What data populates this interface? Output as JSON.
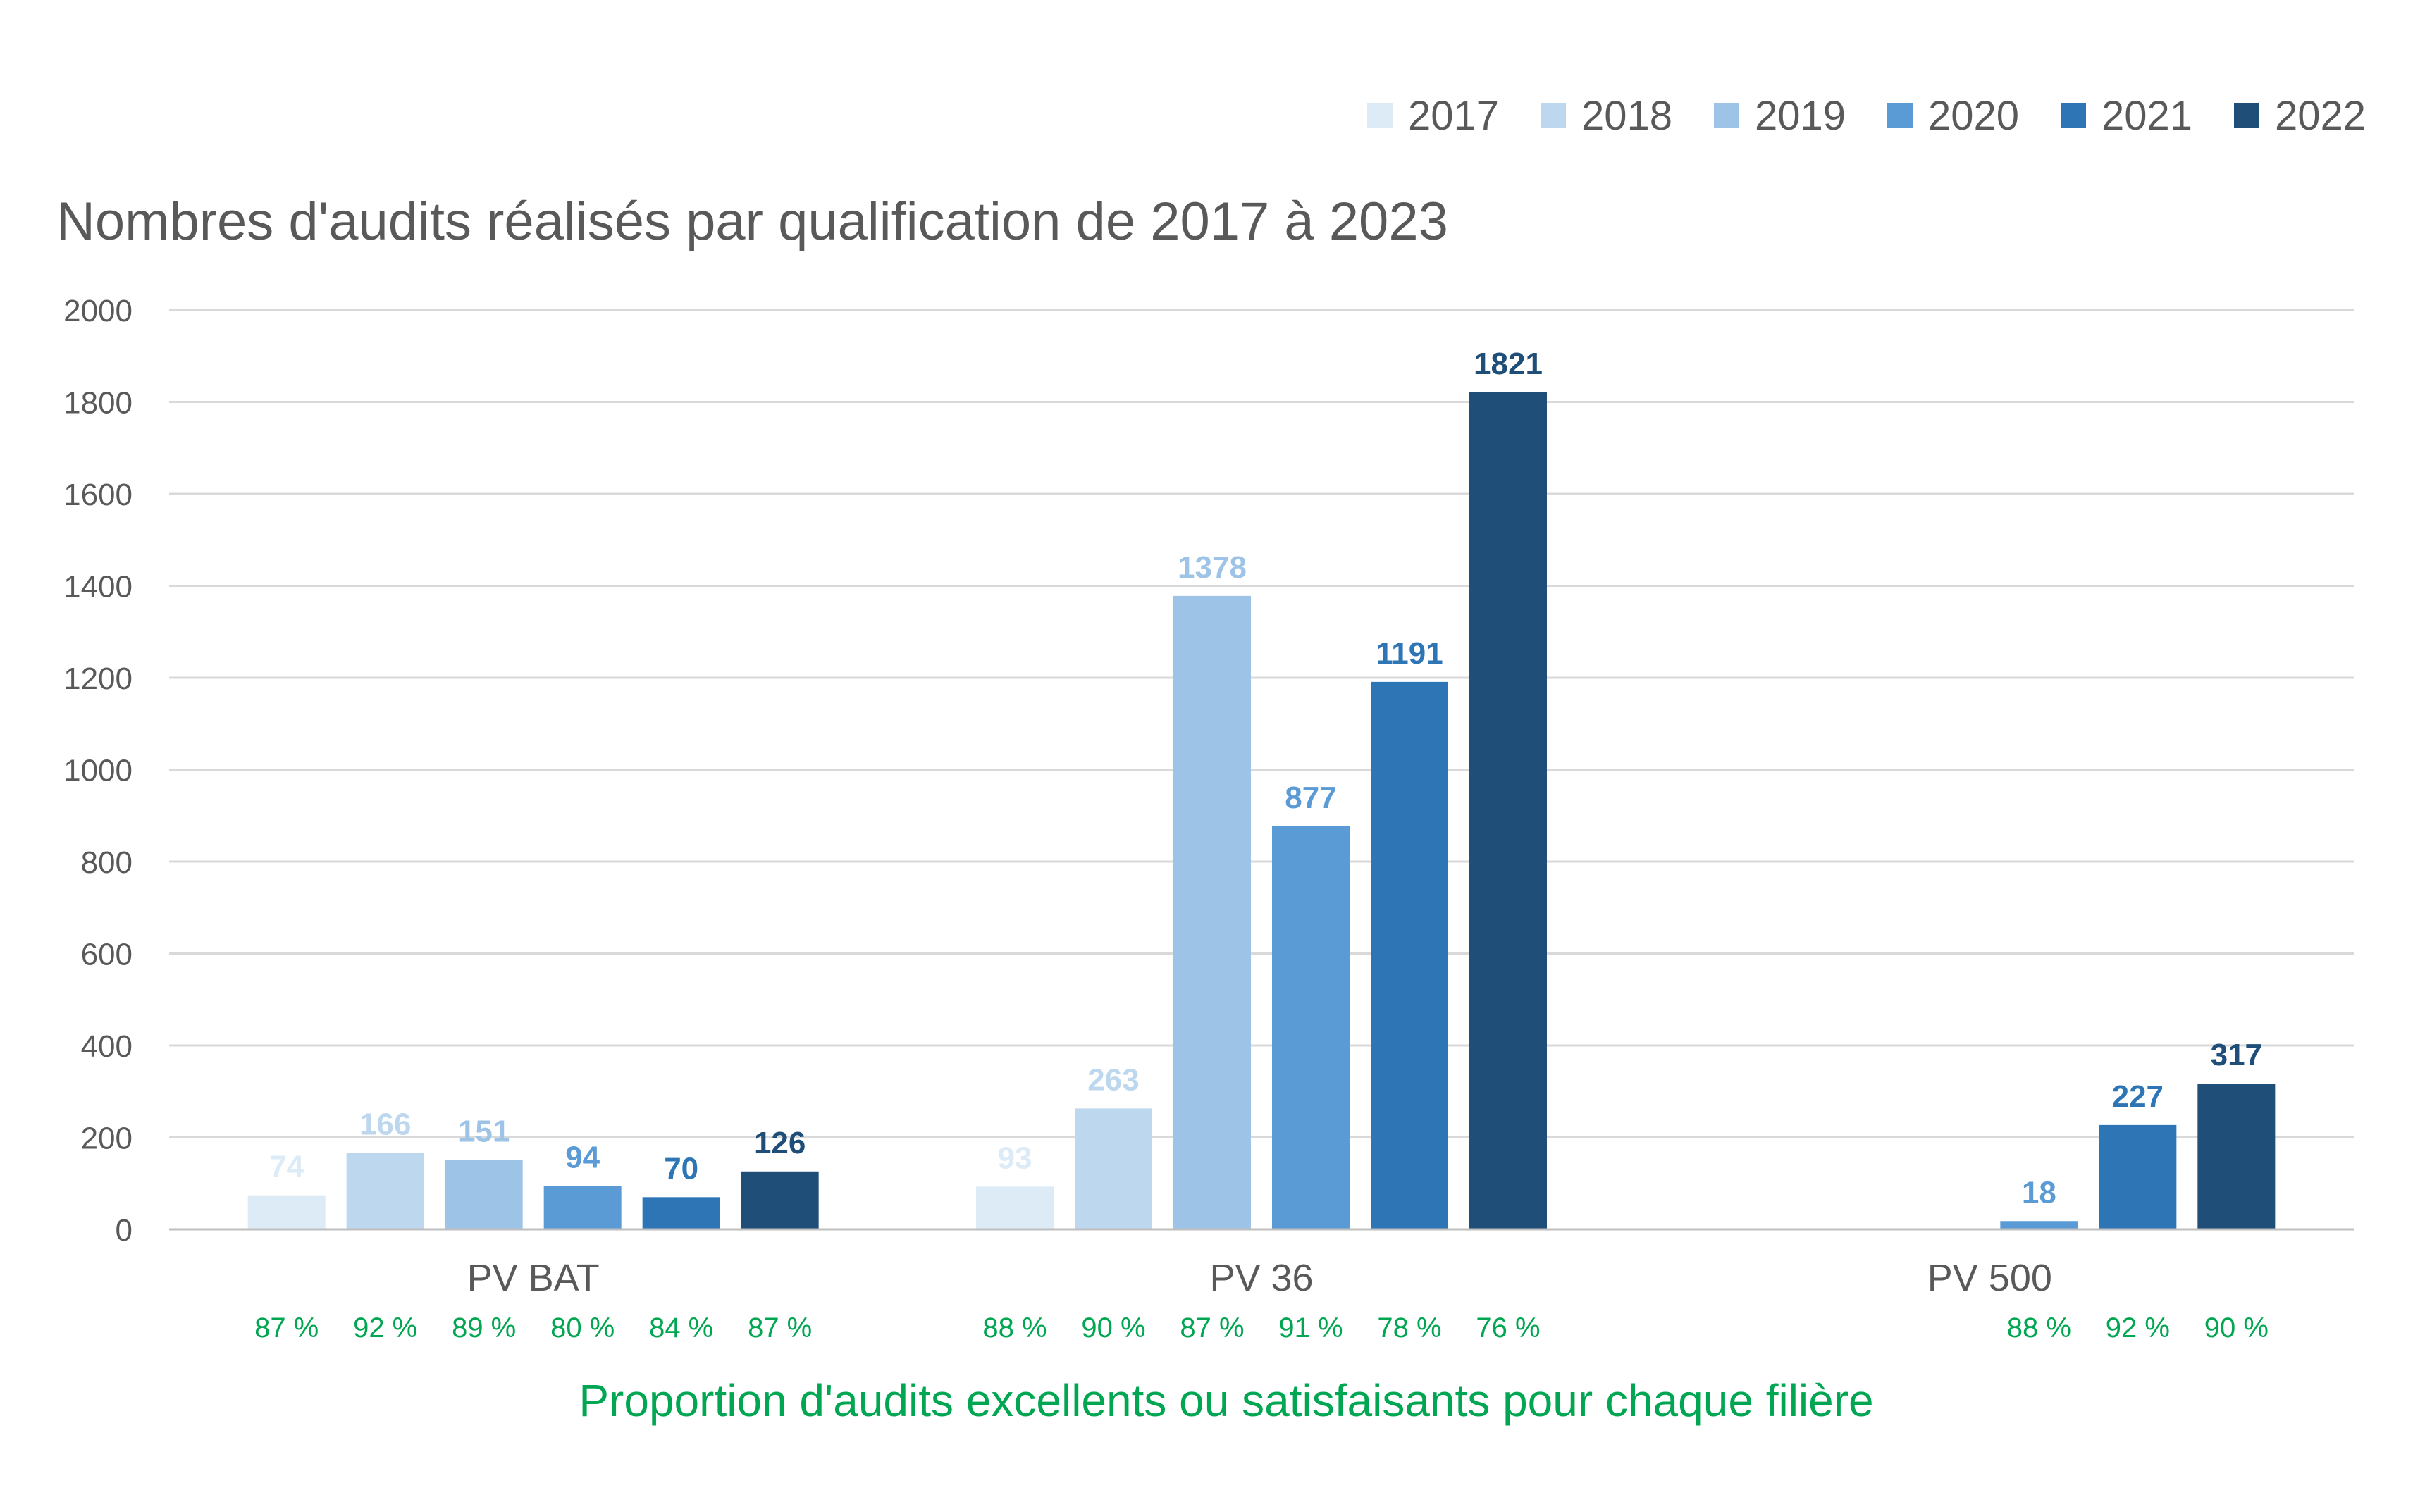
{
  "chart_data": {
    "type": "bar",
    "title": "Nombres d'audits réalisés par qualification de 2017 à 2023",
    "categories": [
      "PV BAT",
      "PV 36",
      "PV 500"
    ],
    "series": [
      {
        "name": "2017",
        "color": "#ddebf7",
        "values": [
          74,
          93,
          null
        ]
      },
      {
        "name": "2018",
        "color": "#bdd7ee",
        "values": [
          166,
          263,
          null
        ]
      },
      {
        "name": "2019",
        "color": "#9dc3e6",
        "values": [
          151,
          1378,
          null
        ]
      },
      {
        "name": "2020",
        "color": "#5b9bd5",
        "values": [
          94,
          877,
          18
        ]
      },
      {
        "name": "2021",
        "color": "#2e75b6",
        "values": [
          70,
          1191,
          227
        ]
      },
      {
        "name": "2022",
        "color": "#1f4e79",
        "values": [
          126,
          1821,
          317
        ]
      }
    ],
    "label_colors": [
      "#ddebf7",
      "#bdd7ee",
      "#9dc3e6",
      "#5b9bd5",
      "#2e75b6",
      "#1f4e79"
    ],
    "ylim": [
      0,
      2000
    ],
    "yticks": [
      0,
      200,
      400,
      600,
      800,
      1000,
      1200,
      1400,
      1600,
      1800,
      2000
    ],
    "grid": true,
    "legend_position": "top-right",
    "proportions": [
      [
        "87 %",
        "92 %",
        "89 %",
        "80 %",
        "84 %",
        "87 %"
      ],
      [
        "88 %",
        "90 %",
        "87 %",
        "91 %",
        "78 %",
        "76 %"
      ],
      [
        null,
        null,
        null,
        "88 %",
        "92 %",
        "90 %"
      ]
    ],
    "footer": "Proportion d'audits excellents ou satisfaisants pour chaque filière",
    "accent_color": "#00a651"
  }
}
